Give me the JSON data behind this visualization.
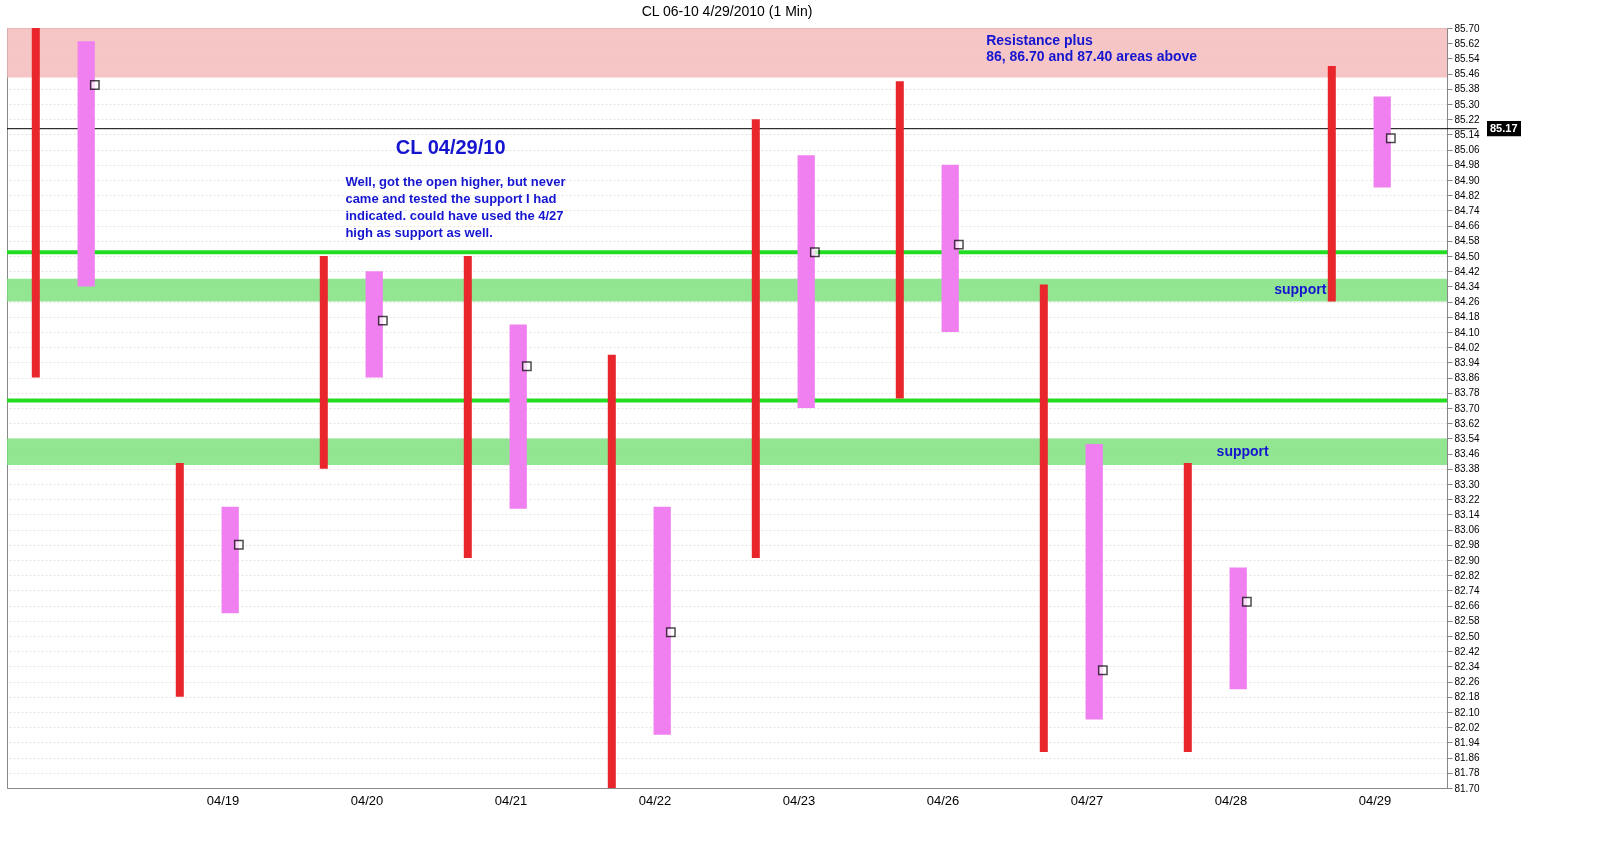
{
  "chart_data": {
    "type": "bar",
    "title": "CL 06-10  4/29/2010 (1 Min)",
    "categories": [
      null,
      "04/19",
      "04/20",
      "04/21",
      "04/22",
      "04/23",
      "04/26",
      "04/27",
      "04/28",
      "04/29"
    ],
    "series": [
      {
        "color": "#e8262b",
        "base": [
          83.86,
          82.18,
          83.38,
          82.91,
          81.7,
          82.91,
          83.75,
          81.89,
          81.89,
          84.26
        ],
        "values": [
          1.84,
          1.23,
          1.12,
          1.59,
          2.28,
          2.31,
          1.67,
          2.46,
          1.52,
          1.24
        ]
      },
      {
        "color": "#f080f0",
        "base": [
          84.34,
          82.62,
          83.86,
          83.17,
          81.98,
          83.7,
          84.1,
          82.06,
          82.22,
          84.86
        ],
        "values": [
          1.29,
          0.56,
          0.56,
          0.97,
          1.2,
          1.33,
          0.88,
          1.45,
          0.64,
          0.48
        ]
      },
      {
        "type": "scatter",
        "color": "#000000",
        "values": [
          85.4,
          82.98,
          84.16,
          83.92,
          82.52,
          84.52,
          84.56,
          82.32,
          82.68,
          85.12
        ]
      }
    ],
    "marker": "square",
    "ylim": [
      81.7,
      85.7
    ],
    "yticks": [
      {
        "value": 81.7,
        "label": "81.70"
      },
      81.78,
      81.86,
      81.94,
      82.02,
      {
        "value": 82.1,
        "label": "82.10"
      },
      82.18,
      82.26,
      82.34,
      82.42,
      {
        "value": 82.5,
        "label": "82.50"
      },
      82.58,
      82.66,
      82.74,
      82.82,
      {
        "value": 82.9,
        "label": "82.90"
      },
      82.98,
      83.06,
      83.14,
      83.22,
      {
        "value": 83.3,
        "label": "83.30"
      },
      83.38,
      83.46,
      83.54,
      83.62,
      {
        "value": 83.7,
        "label": "83.70"
      },
      83.78,
      83.86,
      83.94,
      84.02,
      {
        "value": 84.1,
        "label": "84.10"
      },
      84.18,
      84.26,
      84.34,
      84.42,
      {
        "value": 84.5,
        "label": "84.50"
      },
      84.58,
      84.66,
      84.74,
      84.82,
      {
        "value": 84.9,
        "label": "84.90"
      },
      84.98,
      85.06,
      85.14,
      85.22,
      {
        "value": 85.3,
        "label": "85.30"
      },
      85.38,
      85.46,
      85.54,
      85.62,
      {
        "value": 85.7,
        "label": "85.70"
      }
    ],
    "bands": [
      {
        "axis": "y",
        "from": 85.44,
        "to": 85.7,
        "label": "Resistance plus\n86, 86.70 and 87.40 areas above",
        "color": "#f4b6b6"
      },
      {
        "axis": "y",
        "from": 84.26,
        "to": 84.38,
        "label": "support",
        "color": "#77e077"
      },
      {
        "axis": "y",
        "from": 83.4,
        "to": 83.54,
        "label": "support",
        "color": "#77e077"
      }
    ],
    "ref_lines": [
      {
        "axis": "y",
        "value": 84.52,
        "color": "#22dd22"
      },
      {
        "axis": "y",
        "value": 83.74,
        "color": "#22dd22"
      },
      {
        "axis": "y",
        "value": 85.17,
        "label": "85.17",
        "color": "#000000"
      }
    ],
    "annotations": [
      "CL 04/29/10",
      "Well, got the open higher, but never\ncame and tested the support I had\nindicated.  could have used the 4/27\nhigh as support as well."
    ],
    "grid": "y"
  }
}
